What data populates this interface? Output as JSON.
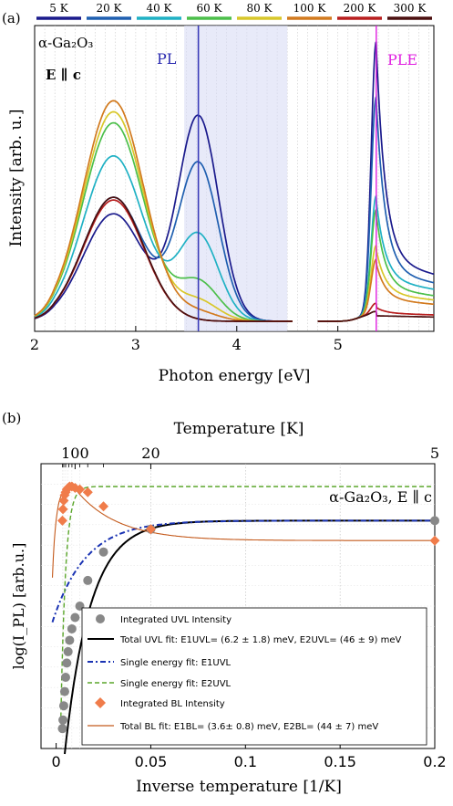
{
  "panel_a": {
    "label": "(a)",
    "temp_legend": [
      "5 K",
      "20 K",
      "40 K",
      "60 K",
      "80 K",
      "100 K",
      "200 K",
      "300 K"
    ],
    "material": "α-Ga₂O₃",
    "polarization": "E ∥ c",
    "pl_label": "PL",
    "ple_label": "PLE",
    "xticks": [
      "2",
      "3",
      "4",
      "5"
    ],
    "xlabel": "Photon energy [eV]",
    "ylabel": "Intensity [arb. u.]"
  },
  "panel_b": {
    "label": "(b)",
    "top_axis_label": "Temperature [K]",
    "top_ticks": [
      "100",
      "20",
      "5"
    ],
    "material_label": "α-Ga₂O₃, E ∥ c",
    "xticks": [
      "0",
      "0.05",
      "0.1",
      "0.15",
      "0.2"
    ],
    "xlabel": "Inverse temperature [1/K]",
    "ylabel": "log(I_PL) [arb.u.]",
    "legend": [
      {
        "text": "Integrated UVL Intensity"
      },
      {
        "text": "Total UVL fit: E1UVL= (6.2 ± 1.8) meV, E2UVL= (46 ± 9) meV"
      },
      {
        "text": "Single energy fit: E1UVL"
      },
      {
        "text": "Single energy fit: E2UVL"
      },
      {
        "text": "Integrated BL Intensity"
      },
      {
        "text": "Total BL fit: E1BL= (3.6± 0.8) meV, E2BL= (44 ± 7) meV"
      }
    ]
  },
  "chart_data": [
    {
      "type": "line",
      "xlabel": "Photon energy [eV]",
      "ylabel": "Intensity [arb. u.]",
      "xlim": [
        2.0,
        5.95
      ],
      "ylim": [
        0,
        1.0
      ],
      "pl_marker_eV": 3.62,
      "ple_marker_eV": 5.38,
      "pl_shaded_range_eV": [
        3.48,
        4.5
      ],
      "series": [
        {
          "name": "5 K",
          "color": "#1a1a8c",
          "pl": {
            "uvl_amp": 0.74,
            "bl_amp": 0.39
          },
          "ple": {
            "peak": 1.0,
            "tail": 0.22
          }
        },
        {
          "name": "20 K",
          "color": "#1f5fb0",
          "pl": {
            "uvl_amp": 0.57,
            "bl_amp": 0.45
          },
          "ple": {
            "peak": 0.8,
            "tail": 0.18
          }
        },
        {
          "name": "40 K",
          "color": "#1fb1c4",
          "pl": {
            "uvl_amp": 0.31,
            "bl_amp": 0.6
          },
          "ple": {
            "peak": 0.44,
            "tail": 0.15
          }
        },
        {
          "name": "60 K",
          "color": "#4cbf4a",
          "pl": {
            "uvl_amp": 0.14,
            "bl_amp": 0.72
          },
          "ple": {
            "peak": 0.39,
            "tail": 0.12
          }
        },
        {
          "name": "80 K",
          "color": "#d8c72a",
          "pl": {
            "uvl_amp": 0.07,
            "bl_amp": 0.76
          },
          "ple": {
            "peak": 0.26,
            "tail": 0.1
          }
        },
        {
          "name": "100 K",
          "color": "#d27a1e",
          "pl": {
            "uvl_amp": 0.03,
            "bl_amp": 0.8
          },
          "ple": {
            "peak": 0.21,
            "tail": 0.08
          }
        },
        {
          "name": "200 K",
          "color": "#b81e1e",
          "pl": {
            "uvl_amp": 0.0,
            "bl_amp": 0.44
          },
          "ple": {
            "peak": 0.05,
            "tail": 0.03
          }
        },
        {
          "name": "300 K",
          "color": "#4a0f0f",
          "pl": {
            "uvl_amp": 0.0,
            "bl_amp": 0.45
          },
          "ple": {
            "peak": 0.02,
            "tail": 0.02
          }
        }
      ]
    },
    {
      "type": "scatter",
      "xlabel": "Inverse temperature [1/K]",
      "ylabel": "log(I_PL) [arb.u.]",
      "xlim": [
        -0.008,
        0.2
      ],
      "ylim": [
        0.0,
        1.0
      ],
      "uvl_points": [
        {
          "x": 0.0033,
          "y": 0.07
        },
        {
          "x": 0.0036,
          "y": 0.1
        },
        {
          "x": 0.004,
          "y": 0.15
        },
        {
          "x": 0.0045,
          "y": 0.2
        },
        {
          "x": 0.005,
          "y": 0.25
        },
        {
          "x": 0.0056,
          "y": 0.3
        },
        {
          "x": 0.0063,
          "y": 0.34
        },
        {
          "x": 0.0071,
          "y": 0.38
        },
        {
          "x": 0.0083,
          "y": 0.42
        },
        {
          "x": 0.01,
          "y": 0.46
        },
        {
          "x": 0.0125,
          "y": 0.5
        },
        {
          "x": 0.0167,
          "y": 0.59
        },
        {
          "x": 0.025,
          "y": 0.69
        },
        {
          "x": 0.05,
          "y": 0.77
        },
        {
          "x": 0.2,
          "y": 0.8
        }
      ],
      "bl_points": [
        {
          "x": 0.0033,
          "y": 0.8
        },
        {
          "x": 0.0036,
          "y": 0.84
        },
        {
          "x": 0.004,
          "y": 0.87
        },
        {
          "x": 0.0045,
          "y": 0.89
        },
        {
          "x": 0.005,
          "y": 0.9
        },
        {
          "x": 0.0056,
          "y": 0.91
        },
        {
          "x": 0.0063,
          "y": 0.915
        },
        {
          "x": 0.0071,
          "y": 0.92
        },
        {
          "x": 0.0083,
          "y": 0.92
        },
        {
          "x": 0.01,
          "y": 0.915
        },
        {
          "x": 0.0125,
          "y": 0.91
        },
        {
          "x": 0.0167,
          "y": 0.9
        },
        {
          "x": 0.025,
          "y": 0.85
        },
        {
          "x": 0.05,
          "y": 0.77
        },
        {
          "x": 0.2,
          "y": 0.73
        }
      ],
      "colors": {
        "uvl": "#888888",
        "bl": "#f07c4a",
        "total_uvl": "#000000",
        "single1": "#1a33b3",
        "single2": "#5aa62a",
        "total_bl": "#c45a1c"
      }
    }
  ]
}
